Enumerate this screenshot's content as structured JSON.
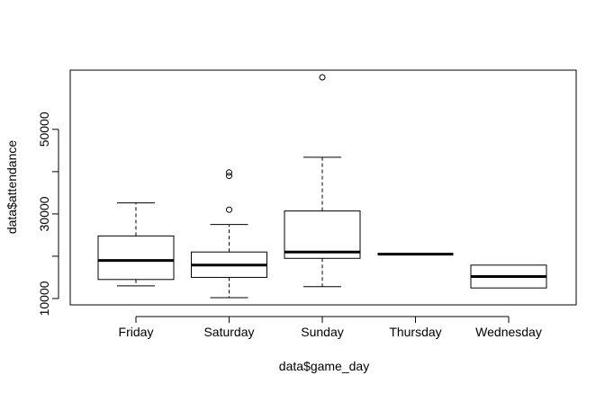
{
  "chart_data": {
    "type": "boxplot",
    "xlabel": "data$game_day",
    "ylabel": "data$attendance",
    "categories": [
      "Friday",
      "Saturday",
      "Sunday",
      "Thursday",
      "Wednesday"
    ],
    "y_ticks": [
      10000,
      30000,
      50000
    ],
    "y_tick_labels": [
      "10000",
      "30000",
      "50000"
    ],
    "ylim": [
      8500,
      64000
    ],
    "grid": false,
    "legend": "none",
    "boxes": [
      {
        "category": "Friday",
        "whisker_low": 13000,
        "q1": 14500,
        "median": 19000,
        "q3": 24800,
        "whisker_high": 32600,
        "outliers": []
      },
      {
        "category": "Saturday",
        "whisker_low": 10200,
        "q1": 15000,
        "median": 17900,
        "q3": 21000,
        "whisker_high": 27500,
        "outliers": [
          31000,
          39000,
          39800
        ]
      },
      {
        "category": "Sunday",
        "whisker_low": 12800,
        "q1": 19500,
        "median": 21000,
        "q3": 30700,
        "whisker_high": 43400,
        "outliers": [
          62300
        ]
      },
      {
        "category": "Thursday",
        "whisker_low": 20500,
        "q1": 20500,
        "median": 20500,
        "q3": 20500,
        "whisker_high": 20500,
        "outliers": []
      },
      {
        "category": "Wednesday",
        "whisker_low": 12500,
        "q1": 12500,
        "median": 15200,
        "q3": 17900,
        "whisker_high": 17900,
        "outliers": []
      }
    ]
  }
}
